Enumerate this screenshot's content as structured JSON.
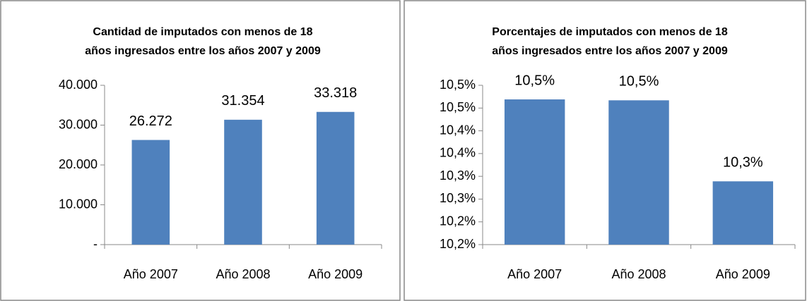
{
  "chart_data": [
    {
      "type": "bar",
      "title": [
        "Cantidad de imputados con menos de 18",
        "años ingresados entre los años 2007 y 2009"
      ],
      "categories": [
        "Año 2007",
        "Año 2008",
        "Año 2009"
      ],
      "values": [
        26272,
        31354,
        33318
      ],
      "value_labels": [
        "26.272",
        "31.354",
        "33.318"
      ],
      "color": "#4f81bd",
      "ylim": [
        0,
        40000
      ],
      "yticks": [
        {
          "value": 0,
          "label": "-"
        },
        {
          "value": 10000,
          "label": "10.000"
        },
        {
          "value": 20000,
          "label": "20.000"
        },
        {
          "value": 30000,
          "label": "30.000"
        },
        {
          "value": 40000,
          "label": "40.000"
        }
      ],
      "grid": false
    },
    {
      "type": "bar",
      "title": [
        "Porcentajes de imputados con menos de 18",
        "años ingresados entre los años 2007 y 2009"
      ],
      "categories": [
        "Año 2007",
        "Año 2008",
        "Año 2009"
      ],
      "values": [
        10.469,
        10.467,
        10.289
      ],
      "value_labels": [
        "10,5%",
        "10,5%",
        "10,3%"
      ],
      "color": "#4f81bd",
      "ylim": [
        10.15,
        10.5
      ],
      "yticks": [
        {
          "value": 10.15,
          "label": "10,2%"
        },
        {
          "value": 10.2,
          "label": "10,2%"
        },
        {
          "value": 10.25,
          "label": "10,3%"
        },
        {
          "value": 10.3,
          "label": "10,3%"
        },
        {
          "value": 10.35,
          "label": "10,4%"
        },
        {
          "value": 10.4,
          "label": "10,4%"
        },
        {
          "value": 10.45,
          "label": "10,5%"
        },
        {
          "value": 10.5,
          "label": "10,5%"
        }
      ],
      "grid": false
    }
  ]
}
